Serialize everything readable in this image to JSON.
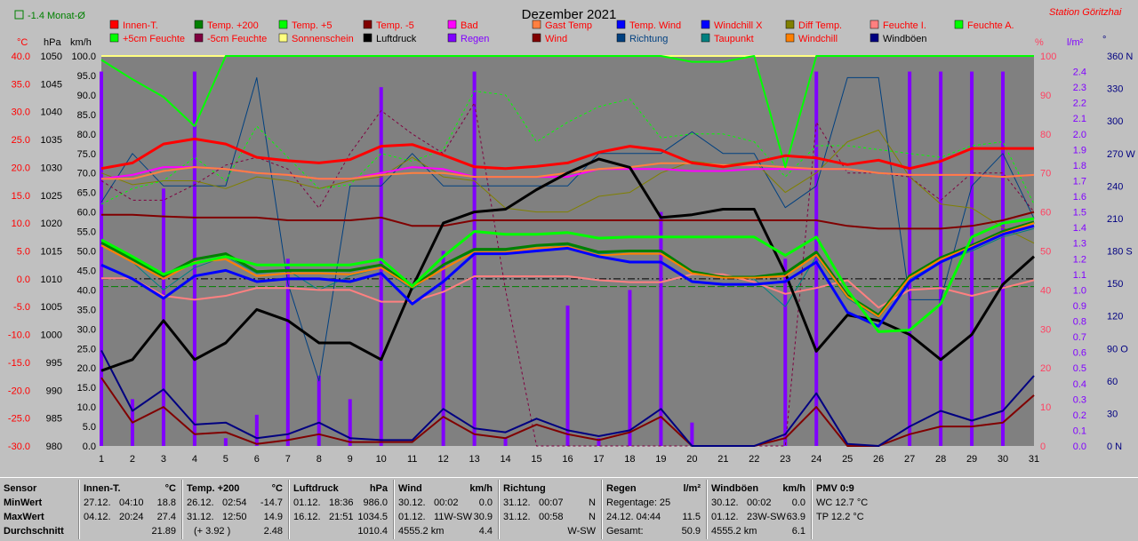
{
  "header": {
    "title": "Dezember 2021",
    "station": "Station Göritzhai",
    "monat_label": "-1.4 Monat-Ø"
  },
  "colors": {
    "background": "#c0c0c0",
    "plot_background": "#808080",
    "innen": "#ff0000",
    "temp200": "#008000",
    "temp5": "#00ff00",
    "tempminus5": "#800000",
    "bad": "#ff00ff",
    "gast": "#ff8040",
    "tempwind": "#0000ff",
    "windchillx": "#0000ff",
    "difftemp": "#808000",
    "feuchtei": "#ff8080",
    "feuchtea": "#00ff00",
    "feuchte5": "#00ff00",
    "feuchteminus5": "#800040",
    "sonnenschein": "#ffff80",
    "luftdruck": "#000000",
    "regen": "#8000ff",
    "wind": "#800000",
    "richtung": "#004080",
    "taupunkt": "#008080",
    "windchill": "#ff8000",
    "windboeen": "#000080",
    "axis_red": "#ff0000",
    "axis_pink": "#ff4060",
    "axis_blue": "#000080"
  },
  "chart_data": {
    "type": "line",
    "title": "Dezember 2021",
    "x": [
      1,
      2,
      3,
      4,
      5,
      6,
      7,
      8,
      9,
      10,
      11,
      12,
      13,
      14,
      15,
      16,
      17,
      18,
      19,
      20,
      21,
      22,
      23,
      24,
      25,
      26,
      27,
      28,
      29,
      30,
      31
    ],
    "axes": {
      "temp_c": {
        "label": "°C",
        "ylim": [
          -30,
          40
        ],
        "ticks": [
          "40.0",
          "35.0",
          "30.0",
          "25.0",
          "20.0",
          "15.0",
          "10.0",
          "5.0",
          "0.0",
          "-5.0",
          "-10.0",
          "-15.0",
          "-20.0",
          "-25.0",
          "-30.0"
        ]
      },
      "pressure_hpa": {
        "label": "hPa",
        "ylim": [
          980,
          1050
        ],
        "ticks": [
          "1050",
          "1045",
          "1040",
          "1035",
          "1030",
          "1025",
          "1020",
          "1015",
          "1010",
          "1005",
          "1000",
          "995",
          "990",
          "985",
          "980"
        ]
      },
      "wind_kmh": {
        "label": "km/h",
        "ylim": [
          0,
          100
        ],
        "ticks": [
          "100.0",
          "95.0",
          "90.0",
          "85.0",
          "80.0",
          "75.0",
          "70.0",
          "65.0",
          "60.0",
          "55.0",
          "50.0",
          "45.0",
          "40.0",
          "35.0",
          "30.0",
          "25.0",
          "20.0",
          "15.0",
          "10.0",
          "5.0",
          "0.0"
        ]
      },
      "humidity_pct": {
        "label": "%",
        "ylim": [
          0,
          100
        ],
        "ticks": [
          "100",
          "90",
          "80",
          "70",
          "60",
          "50",
          "40",
          "30",
          "20",
          "10",
          "0"
        ]
      },
      "rain_lm2": {
        "label": "l/m²",
        "ylim": [
          0,
          2.5
        ],
        "ticks": [
          "2.4",
          "2.3",
          "2.2",
          "2.1",
          "2.0",
          "1.9",
          "1.8",
          "1.7",
          "1.6",
          "1.5",
          "1.4",
          "1.3",
          "1.2",
          "1.1",
          "1.0",
          "0.9",
          "0.8",
          "0.7",
          "0.6",
          "0.5",
          "0.4",
          "0.3",
          "0.2",
          "0.1",
          "0.0"
        ]
      },
      "direction_deg": {
        "label": "°",
        "ylim": [
          0,
          360
        ],
        "ticks": [
          "360 N",
          "330",
          "300",
          "270 W",
          "240",
          "210",
          "180 S",
          "150",
          "120",
          "90 O",
          "60",
          "30",
          "0 N"
        ]
      }
    },
    "legend": [
      "Innen-T.",
      "Temp. +200",
      "Temp. +5",
      "Temp. -5",
      "Bad",
      "Gast Temp",
      "Temp. Wind",
      "Windchill X",
      "Diff Temp.",
      "Feuchte I.",
      "Feuchte A.",
      "+5cm Feuchte",
      "-5cm Feuchte",
      "Sonnenschein",
      "Luftdruck",
      "Regen",
      "Wind",
      "Richtung",
      "Taupunkt",
      "Windchill",
      "Windböen"
    ],
    "series": [
      {
        "name": "Innen-T.",
        "axis": "temp_c",
        "width": 3,
        "values": [
          19.8,
          20.8,
          24.2,
          25.1,
          24.2,
          21.8,
          21.2,
          20.8,
          21.4,
          23.8,
          24.1,
          22.2,
          20.1,
          19.8,
          20.2,
          20.8,
          22.7,
          23.8,
          23.1,
          20.8,
          20.1,
          20.9,
          22.1,
          21.7,
          20.5,
          21.3,
          19.8,
          21.1,
          23.4,
          23.4,
          23.4
        ]
      },
      {
        "name": "Temp. +200",
        "axis": "temp_c",
        "width": 3,
        "values": [
          6.5,
          3.5,
          0.5,
          3.5,
          4.5,
          1.3,
          1.5,
          1.5,
          1.5,
          2.5,
          -1.5,
          2.5,
          5.3,
          5.3,
          6.0,
          6.3,
          4.8,
          5.0,
          5.0,
          1.3,
          0.3,
          0.3,
          1.0,
          4.8,
          -3.0,
          -6.5,
          0.5,
          3.8,
          6.0,
          8.5,
          10.2
        ]
      },
      {
        "name": "Temp. +5",
        "axis": "temp_c",
        "width": 3,
        "values": [
          7.0,
          4.0,
          0.8,
          2.8,
          4.0,
          2.5,
          2.5,
          2.5,
          2.5,
          3.5,
          -1.3,
          4.0,
          8.5,
          8.0,
          8.0,
          8.3,
          7.3,
          7.5,
          7.5,
          7.5,
          7.5,
          7.5,
          4.2,
          7.5,
          -2.0,
          -9.5,
          -9.2,
          -4.5,
          7.5,
          10.0,
          10.8
        ]
      },
      {
        "name": "Temp. -5",
        "axis": "temp_c",
        "width": 2,
        "values": [
          11.5,
          11.5,
          11.2,
          11.0,
          11.0,
          11.0,
          10.5,
          10.5,
          10.5,
          11.0,
          9.5,
          9.5,
          10.5,
          10.5,
          10.5,
          10.5,
          10.5,
          10.5,
          10.5,
          10.5,
          10.5,
          10.5,
          10.5,
          10.5,
          9.5,
          9.0,
          9.0,
          9.0,
          9.5,
          10.5,
          12.0
        ]
      },
      {
        "name": "Windchill X",
        "axis": "temp_c",
        "width": 3,
        "values": [
          2.5,
          0.0,
          -3.5,
          0.5,
          1.5,
          -0.5,
          0.0,
          0.0,
          -0.5,
          1.0,
          -4.5,
          -0.5,
          4.5,
          4.5,
          5.0,
          5.5,
          4.0,
          3.0,
          3.0,
          -0.5,
          -1.0,
          -1.0,
          -0.5,
          3.0,
          -6.0,
          -8.5,
          -0.5,
          3.0,
          5.5,
          8.0,
          9.5
        ]
      },
      {
        "name": "Windchill",
        "axis": "temp_c",
        "width": 2,
        "values": [
          6.0,
          3.0,
          0.0,
          3.0,
          3.5,
          0.5,
          1.0,
          1.0,
          0.8,
          2.0,
          -1.5,
          1.8,
          4.8,
          4.8,
          5.5,
          5.8,
          4.2,
          4.5,
          4.5,
          1.0,
          0.2,
          0.2,
          0.5,
          4.3,
          -3.2,
          -6.8,
          0.2,
          3.5,
          5.8,
          8.2,
          10.0
        ]
      },
      {
        "name": "Taupunkt",
        "axis": "temp_c",
        "width": 1,
        "values": [
          6.0,
          3.0,
          -2.0,
          2.0,
          4.0,
          1.0,
          1.5,
          -2.0,
          0.5,
          2.0,
          -2.0,
          2.5,
          5.0,
          5.0,
          5.5,
          6.0,
          4.5,
          4.5,
          4.5,
          1.0,
          0.5,
          0.0,
          -5.0,
          4.0,
          -3.5,
          -7.0,
          0.0,
          3.0,
          5.0,
          7.5,
          9.0
        ]
      },
      {
        "name": "Luftdruck",
        "axis": "pressure_hpa",
        "width": 3,
        "values": [
          993.5,
          995.5,
          1002.5,
          995.5,
          998.5,
          1004.5,
          1002.5,
          998.5,
          998.5,
          995.5,
          1008.5,
          1020.0,
          1022.0,
          1022.5,
          1026.0,
          1029.0,
          1031.5,
          1030.0,
          1021.0,
          1021.5,
          1022.5,
          1022.5,
          1011.0,
          997.0,
          1003.5,
          1002.5,
          1000.0,
          995.5,
          1000.0,
          1009.0,
          1014.0
        ]
      },
      {
        "name": "Feuchte I.",
        "axis": "humidity_pct",
        "width": 2,
        "values": [
          43.0,
          43.0,
          38.5,
          37.5,
          38.5,
          40.5,
          40.5,
          40.0,
          40.0,
          37.0,
          37.0,
          39.5,
          43.5,
          43.5,
          43.5,
          43.5,
          42.5,
          42.0,
          42.0,
          44.0,
          44.0,
          42.0,
          39.0,
          40.5,
          42.5,
          35.5,
          40.0,
          40.5,
          38.5,
          40.5,
          42.5
        ]
      },
      {
        "name": "Bad",
        "axis": "humidity_pct",
        "width": 2,
        "values": [
          68.5,
          69.5,
          71.5,
          71.5,
          71.0,
          70.0,
          69.5,
          68.5,
          68.5,
          70.0,
          71.5,
          71.0,
          69.0,
          69.0,
          69.0,
          69.0,
          71.0,
          71.0,
          71.0,
          70.5,
          70.5,
          71.0,
          71.0,
          71.0,
          71.0,
          70.0,
          69.5,
          69.5,
          69.5,
          69.0,
          69.5
        ]
      },
      {
        "name": "Gast Temp",
        "axis": "humidity_pct",
        "width": 2,
        "values": [
          68.5,
          68.5,
          70.5,
          71.5,
          71.0,
          70.0,
          69.5,
          68.5,
          68.5,
          69.5,
          70.0,
          70.0,
          69.0,
          69.0,
          69.0,
          70.0,
          71.0,
          71.5,
          72.5,
          72.5,
          72.0,
          72.0,
          71.5,
          71.0,
          71.0,
          70.0,
          69.5,
          69.5,
          69.5,
          69.0,
          69.5
        ]
      },
      {
        "name": "Feuchte A.",
        "axis": "humidity_pct",
        "width": 2,
        "values": [
          99.0,
          94.0,
          89.5,
          82.0,
          100.0,
          100.0,
          100.0,
          100.0,
          100.0,
          100.0,
          100.0,
          100.0,
          100.0,
          100.0,
          100.0,
          100.0,
          100.0,
          100.0,
          100.0,
          98.5,
          98.5,
          100.0,
          71.5,
          100.0,
          100.0,
          100.0,
          100.0,
          100.0,
          100.0,
          100.0,
          100.0
        ]
      },
      {
        "name": "+5cm Feuchte",
        "axis": "humidity_pct",
        "width": 1,
        "dash": "3,3",
        "values": [
          62.0,
          66.0,
          68.0,
          74.0,
          68.0,
          82.0,
          74.0,
          66.0,
          67.0,
          75.0,
          73.0,
          76.0,
          91.0,
          90.0,
          78.0,
          83.0,
          87.0,
          89.0,
          79.0,
          80.0,
          80.0,
          78.0,
          69.0,
          77.0,
          77.0,
          76.0,
          75.0,
          74.0,
          77.0,
          78.0,
          62.0
        ]
      },
      {
        "name": "-5cm Feuchte",
        "axis": "humidity_pct",
        "width": 1,
        "dash": "3,3",
        "values": [
          68.0,
          63.0,
          63.0,
          67.0,
          72.0,
          74.0,
          71.0,
          61.0,
          75.0,
          86.0,
          80.0,
          75.0,
          88.0,
          40.0,
          0.0,
          0.0,
          0.0,
          0.0,
          0.0,
          0.0,
          0.0,
          0.0,
          0.0,
          83.0,
          70.0,
          70.0,
          69.0,
          63.0,
          70.0,
          70.0,
          60.0
        ]
      },
      {
        "name": "Diff Temp.",
        "axis": "humidity_pct",
        "width": 1,
        "values": [
          70.0,
          67.0,
          68.0,
          68.0,
          66.0,
          69.0,
          68.0,
          66.0,
          68.0,
          69.0,
          74.0,
          69.0,
          68.0,
          61.0,
          60.0,
          60.0,
          64.0,
          65.0,
          70.0,
          73.0,
          72.0,
          73.0,
          65.0,
          70.0,
          78.0,
          81.0,
          69.0,
          62.0,
          61.0,
          56.0,
          52.0
        ]
      },
      {
        "name": "Sonnenschein",
        "axis": "humidity_pct",
        "width": 2,
        "values": [
          100,
          100,
          100,
          100,
          100,
          100,
          100,
          100,
          100,
          100,
          100,
          100,
          100,
          100,
          100,
          100,
          100,
          100,
          100,
          100,
          100,
          100,
          100,
          100,
          100,
          100,
          100,
          100,
          100,
          100,
          100
        ]
      },
      {
        "name": "Wind",
        "axis": "wind_kmh",
        "width": 2,
        "values": [
          17.5,
          6.0,
          10.0,
          3.0,
          3.5,
          0.5,
          1.5,
          3.0,
          1.0,
          1.0,
          1.0,
          7.5,
          3.0,
          2.0,
          5.5,
          3.0,
          1.5,
          3.5,
          7.5,
          0.0,
          0.0,
          0.0,
          2.0,
          10.0,
          0.0,
          0.0,
          3.0,
          5.0,
          5.0,
          6.0,
          13.0
        ]
      },
      {
        "name": "Windböen",
        "axis": "wind_kmh",
        "width": 2,
        "values": [
          24.5,
          9.0,
          14.5,
          5.5,
          6.0,
          2.0,
          3.0,
          6.0,
          2.0,
          1.5,
          1.5,
          9.5,
          4.5,
          3.5,
          7.0,
          4.0,
          2.5,
          4.0,
          9.5,
          0.0,
          0.0,
          0.0,
          3.0,
          13.5,
          0.5,
          0.0,
          5.0,
          9.0,
          6.5,
          9.0,
          18.0
        ]
      },
      {
        "name": "Richtung",
        "axis": "direction_deg",
        "width": 1,
        "values": [
          225,
          270,
          240,
          240,
          240,
          340,
          150,
          60,
          240,
          240,
          270,
          240,
          240,
          240,
          240,
          240,
          270,
          270,
          270,
          290,
          270,
          270,
          220,
          240,
          340,
          340,
          135,
          135,
          240,
          270,
          210
        ]
      }
    ],
    "rain": {
      "name": "Regen",
      "axis": "rain_lm2",
      "values": [
        2.4,
        0.3,
        1.65,
        2.4,
        0.05,
        0.2,
        1.2,
        0.45,
        0.3,
        2.3,
        0.0,
        1.25,
        2.4,
        0.05,
        0.0,
        0.9,
        0.05,
        1.0,
        1.5,
        0.15,
        0.0,
        0.0,
        1.2,
        2.4,
        0.0,
        0.0,
        2.4,
        2.4,
        2.4,
        2.4,
        0.0
      ]
    },
    "reference_lines": [
      {
        "axis": "temp_c",
        "value": 0.0,
        "color": "#000000",
        "dash": "8,3,2,3"
      },
      {
        "axis": "temp_c",
        "value": -1.4,
        "color": "#008000",
        "dash": "8,3"
      }
    ]
  },
  "stats": {
    "labels": {
      "title": "Sensor",
      "min": "MinWert",
      "max": "MaxWert",
      "avg": "Durchschnitt"
    },
    "innen": {
      "title": "Innen-T.",
      "unit": "°C",
      "min_date": "27.12.",
      "min_time": "04:10",
      "min_val": "18.8",
      "max_date": "04.12.",
      "max_time": "20:24",
      "max_val": "27.4",
      "avg": "21.89"
    },
    "temp200": {
      "title": "Temp. +200",
      "unit": "°C",
      "min_date": "26.12.",
      "min_time": "02:54",
      "min_val": "-14.7",
      "max_date": "31.12.",
      "max_time": "12:50",
      "max_val": "14.9",
      "avg_note": "(+ 3.92 )",
      "avg": "2.48"
    },
    "druck": {
      "title": "Luftdruck",
      "unit": "hPa",
      "min_date": "01.12.",
      "min_time": "18:36",
      "min_val": "986.0",
      "max_date": "16.12.",
      "max_time": "21:51",
      "max_val": "1034.5",
      "avg": "1010.4"
    },
    "wind": {
      "title": "Wind",
      "unit": "km/h",
      "min_date": "30.12.",
      "min_time": "00:02",
      "min_val": "0.0",
      "max_date": "01.12.",
      "max_time": "11W-SW",
      "max_val": "30.9",
      "avg_note": "4555.2 km",
      "avg": "4.4"
    },
    "richtung": {
      "title": "Richtung",
      "min_date": "31.12.",
      "min_time": "00:07",
      "min_val": "N",
      "max_date": "31.12.",
      "max_time": "00:58",
      "max_val": "N",
      "avg": "W-SW"
    },
    "regen": {
      "title": "Regen",
      "unit": "l/m²",
      "r1_label": "Regentage: 25",
      "r2_label": "24.12.  04:44",
      "r2_val": "11.5",
      "r3_label": "Gesamt:",
      "r3_val": "50.9"
    },
    "boeen": {
      "title": "Windböen",
      "unit": "km/h",
      "min_date": "30.12.",
      "min_time": "00:02",
      "min_val": "0.0",
      "max_date": "01.12.",
      "max_time": "23W-SW",
      "max_val": "63.9",
      "avg_note": "4555.2 km",
      "avg": "6.1"
    },
    "pmv": {
      "title": "PMV 0:9",
      "line1": "WC 12.7 °C",
      "line2": "TP 12.2 °C"
    }
  }
}
